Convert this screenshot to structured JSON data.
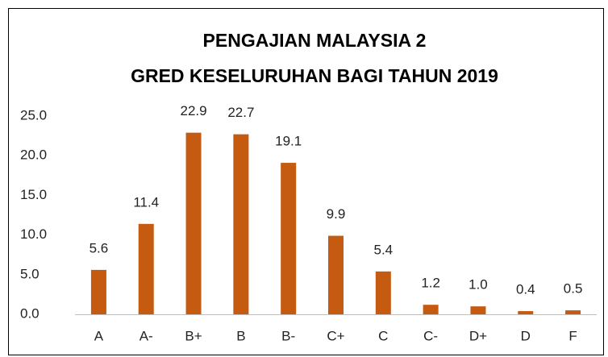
{
  "chart_data": {
    "type": "bar",
    "title": [
      "PENGAJIAN MALAYSIA 2",
      "GRED KESELURUHAN BAGI TAHUN 2019"
    ],
    "categories": [
      "A",
      "A-",
      "B+",
      "B",
      "B-",
      "C+",
      "C",
      "C-",
      "D+",
      "D",
      "F"
    ],
    "values": [
      5.6,
      11.4,
      22.9,
      22.7,
      19.1,
      9.9,
      5.4,
      1.2,
      1.0,
      0.4,
      0.5
    ],
    "value_labels": [
      "5.6",
      "11.4",
      "22.9",
      "22.7",
      "19.1",
      "9.9",
      "5.4",
      "1.2",
      "1.0",
      "0.4",
      "0.5"
    ],
    "color": "#c55a11",
    "ylim": [
      0,
      25
    ],
    "yticks": [
      {
        "value": 0,
        "label": "0.0"
      },
      {
        "value": 5,
        "label": "5.0"
      },
      {
        "value": 10,
        "label": "10.0"
      },
      {
        "value": 15,
        "label": "15.0"
      },
      {
        "value": 20,
        "label": "20.0"
      },
      {
        "value": 25,
        "label": "25.0"
      }
    ],
    "grid": false
  }
}
